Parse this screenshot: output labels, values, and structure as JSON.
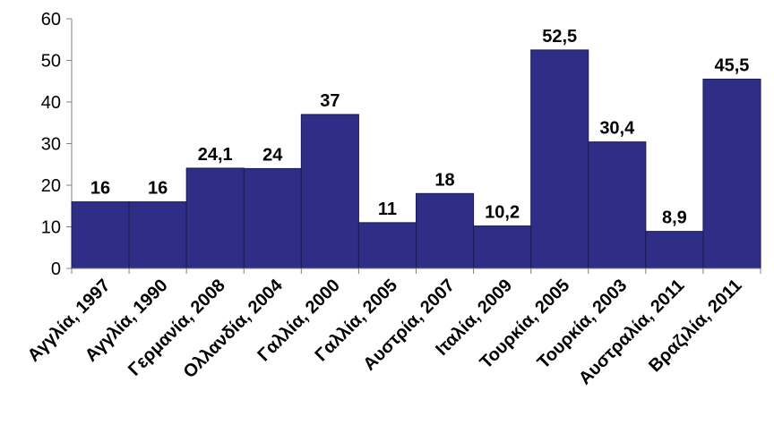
{
  "chart_data": {
    "type": "bar",
    "categories": [
      "Αγγλία, 1997",
      "Αγγλία, 1990",
      "Γερμανία, 2008",
      "Ολλανδία, 2004",
      "Γαλλία, 2000",
      "Γαλλία, 2005",
      "Αυστρία, 2007",
      "Ιταλία, 2009",
      "Τουρκία, 2005",
      "Τουρκία, 2003",
      "Αυστραλία, 2011",
      "Βραζιλία, 2011"
    ],
    "values": [
      16,
      16,
      24.1,
      24,
      37,
      11,
      18,
      10.2,
      52.5,
      30.4,
      8.9,
      45.5
    ],
    "value_labels": [
      "16",
      "16",
      "24,1",
      "24",
      "37",
      "11",
      "18",
      "10,2",
      "52,5",
      "30,4",
      "8,9",
      "45,5"
    ],
    "ylim": [
      0,
      60
    ],
    "yticks": [
      0,
      10,
      20,
      30,
      40,
      50,
      60
    ],
    "grid": false,
    "legend": false,
    "colors": {
      "bar": "#2e2e86",
      "bar_border": "#1a1a55",
      "axis": "#808080"
    }
  }
}
